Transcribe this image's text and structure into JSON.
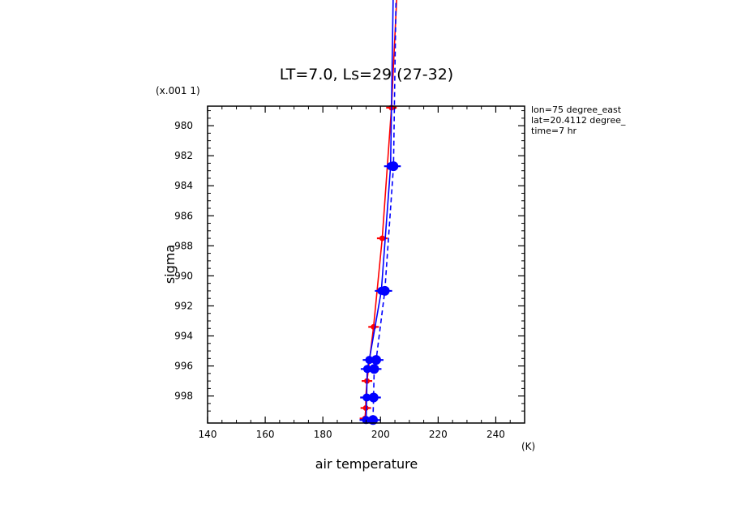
{
  "chart_data": {
    "type": "line",
    "title": "LT=7.0, Ls=29 (27-32)",
    "xlabel": "air temperature",
    "ylabel": "sigma",
    "x_unit": "(K)",
    "y_scale_label": "(x.001 1)",
    "xlim": [
      140,
      250
    ],
    "ylim": [
      999.8,
      978.7
    ],
    "x_ticks": [
      "140",
      "160",
      "180",
      "200",
      "220",
      "240"
    ],
    "y_ticks": [
      "980",
      "982",
      "984",
      "986",
      "988",
      "990",
      "992",
      "994",
      "996",
      "998"
    ],
    "x_tick_values": [
      140,
      160,
      180,
      200,
      220,
      240
    ],
    "y_tick_values": [
      980,
      982,
      984,
      986,
      988,
      990,
      992,
      994,
      996,
      998
    ],
    "annotations": [
      "lon=75 degree_east",
      "lat=20.4112 degree_",
      "time=7 hr"
    ],
    "series": [
      {
        "color": "#ff0000",
        "style": "solid",
        "marker": "small-dot",
        "x": [
          194.6,
          194.9,
          194.9,
          195.3,
          197.6,
          200.6,
          203.8,
          206.0
        ],
        "y": [
          999.5,
          998.8,
          998.1,
          997.0,
          993.4,
          987.5,
          978.8,
          970.0
        ]
      },
      {
        "color": "#0000ff",
        "style": "solid",
        "marker": "dot",
        "x": [
          195.0,
          195.2,
          195.4,
          196.1,
          200.3,
          203.5,
          204.5
        ],
        "y": [
          999.6,
          998.1,
          996.2,
          995.6,
          991.0,
          982.7,
          970.0
        ]
      },
      {
        "color": "#0000ff",
        "style": "dashed",
        "marker": "large-dot",
        "x": [
          197.4,
          197.6,
          197.8,
          198.5,
          201.5,
          204.5,
          205.5
        ],
        "y": [
          999.6,
          998.1,
          996.2,
          995.6,
          991.0,
          982.7,
          970.0
        ]
      }
    ]
  }
}
